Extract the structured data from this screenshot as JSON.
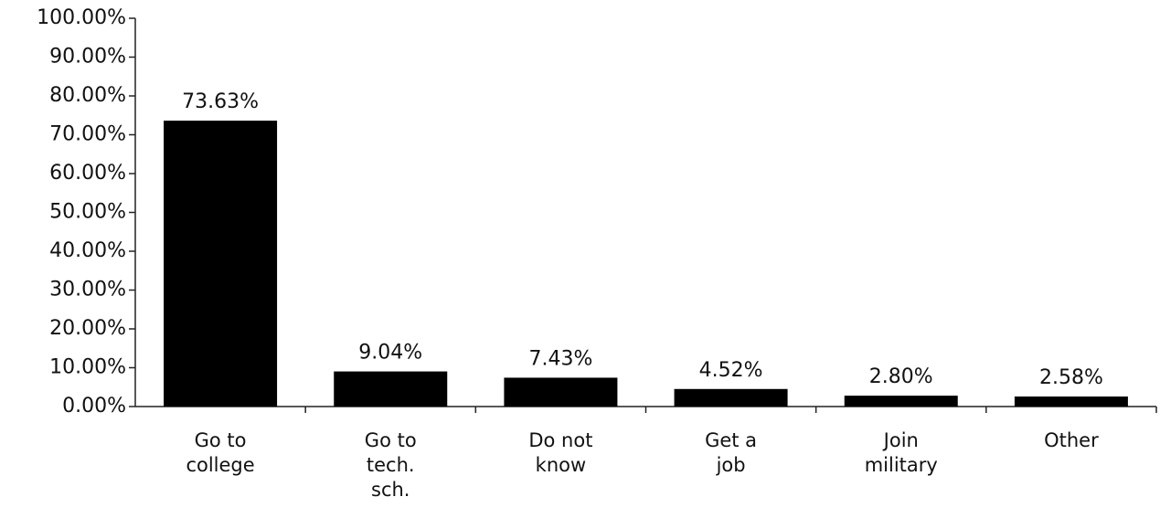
{
  "chart_data": {
    "type": "bar",
    "categories": [
      "Go to\ncollege",
      "Go to\ntech.\nsch.",
      "Do not\nknow",
      "Get a\njob",
      "Join\nmilitary",
      "Other"
    ],
    "values": [
      73.63,
      9.04,
      7.43,
      4.52,
      2.8,
      2.58
    ],
    "value_labels": [
      "73.63%",
      "9.04%",
      "7.43%",
      "4.52%",
      "2.80%",
      "2.58%"
    ],
    "color": "#000000",
    "ylim": [
      0,
      100
    ],
    "yticks": [
      {
        "value": 0,
        "label": "0.00%"
      },
      {
        "value": 10,
        "label": "10.00%"
      },
      {
        "value": 20,
        "label": "20.00%"
      },
      {
        "value": 30,
        "label": "30.00%"
      },
      {
        "value": 40,
        "label": "40.00%"
      },
      {
        "value": 50,
        "label": "50.00%"
      },
      {
        "value": 60,
        "label": "60.00%"
      },
      {
        "value": 70,
        "label": "70.00%"
      },
      {
        "value": 80,
        "label": "80.00%"
      },
      {
        "value": 90,
        "label": "90.00%"
      },
      {
        "value": 100,
        "label": "100.00%"
      }
    ],
    "grid": false
  }
}
